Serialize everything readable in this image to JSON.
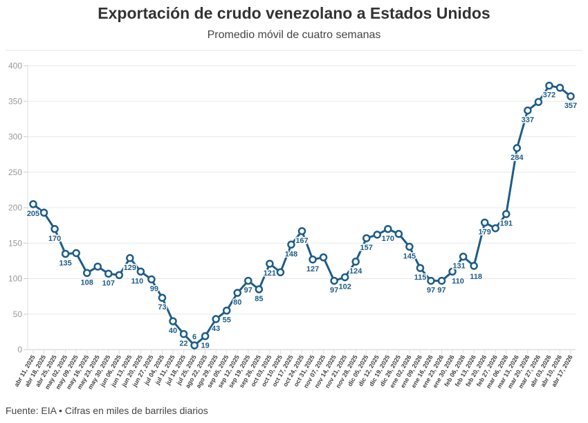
{
  "title": "Exportación de crudo venezolano a Estados Unidos",
  "subtitle": "Promedio móvil de cuatro semanas",
  "footer": "Fuente: EIA • Cifras en miles de barriles diarios",
  "chart_data": {
    "type": "line",
    "title": "Exportación de crudo venezolano a Estados Unidos",
    "subtitle": "Promedio móvil de cuatro semanas",
    "color": "#1d5c87",
    "ylim": [
      0,
      400
    ],
    "yticks": [
      0,
      50,
      100,
      150,
      200,
      250,
      300,
      350,
      400
    ],
    "grid": true,
    "categories": [
      "abr 11, 2025",
      "abr 18, 2025",
      "abr 25, 2025",
      "may 02, 2025",
      "may 09, 2025",
      "may 16, 2025",
      "may 23, 2025",
      "may 30, 2025",
      "jun 06, 2025",
      "jun 13, 2025",
      "jun 20, 2025",
      "jun 27, 2025",
      "jul 04, 2025",
      "jul 11, 2025",
      "jul 18, 2025",
      "jul 25, 2025",
      "ago 22, 2025",
      "ago 29, 2025",
      "sep 05, 2025",
      "sep 12, 2025",
      "sep 19, 2025",
      "sep 26, 2025",
      "oct 03, 2025",
      "oct 10, 2025",
      "oct 17, 2025",
      "oct 24, 2025",
      "oct 31, 2025",
      "nov 07, 2025",
      "nov 14, 2025",
      "nov 21, 2025",
      "nov 28, 2025",
      "dic 05, 2025",
      "dic 12, 2025",
      "dic 19, 2025",
      "dic 26, 2025",
      "ene 02, 2026",
      "ene 09, 2026",
      "ene 16, 2026",
      "ene 23, 2026",
      "ene 30, 2026",
      "feb 06, 2026",
      "feb 13, 2026",
      "feb 20, 2026",
      "feb 27, 2026",
      "mar 06, 2026",
      "mar 13, 2026",
      "mar 20, 2026",
      "mar 27, 2026",
      "abr 03, 2026",
      "abr 10, 2026",
      "abr 17, 2026"
    ],
    "values": [
      205,
      193,
      170,
      135,
      136,
      108,
      117,
      107,
      105,
      129,
      110,
      99,
      73,
      40,
      22,
      6,
      19,
      43,
      55,
      80,
      97,
      85,
      121,
      109,
      148,
      167,
      127,
      130,
      97,
      102,
      124,
      157,
      162,
      170,
      163,
      145,
      115,
      97,
      97,
      110,
      131,
      118,
      179,
      171,
      191,
      284,
      337,
      349,
      372,
      369,
      357
    ],
    "labels": [
      "205",
      null,
      "170",
      "135",
      null,
      "108",
      null,
      "107",
      null,
      "129",
      "110",
      "99",
      "73",
      "40",
      "22",
      "6",
      "19",
      "43",
      "55",
      "80",
      "97",
      "85",
      "121",
      null,
      "148",
      "167",
      "127",
      null,
      "97",
      "102",
      "124",
      "157",
      null,
      "170",
      null,
      "145",
      "115",
      "97",
      "97",
      "110",
      "131",
      "118",
      "179",
      null,
      "191",
      "284",
      "337",
      null,
      "372",
      null,
      "357"
    ]
  }
}
